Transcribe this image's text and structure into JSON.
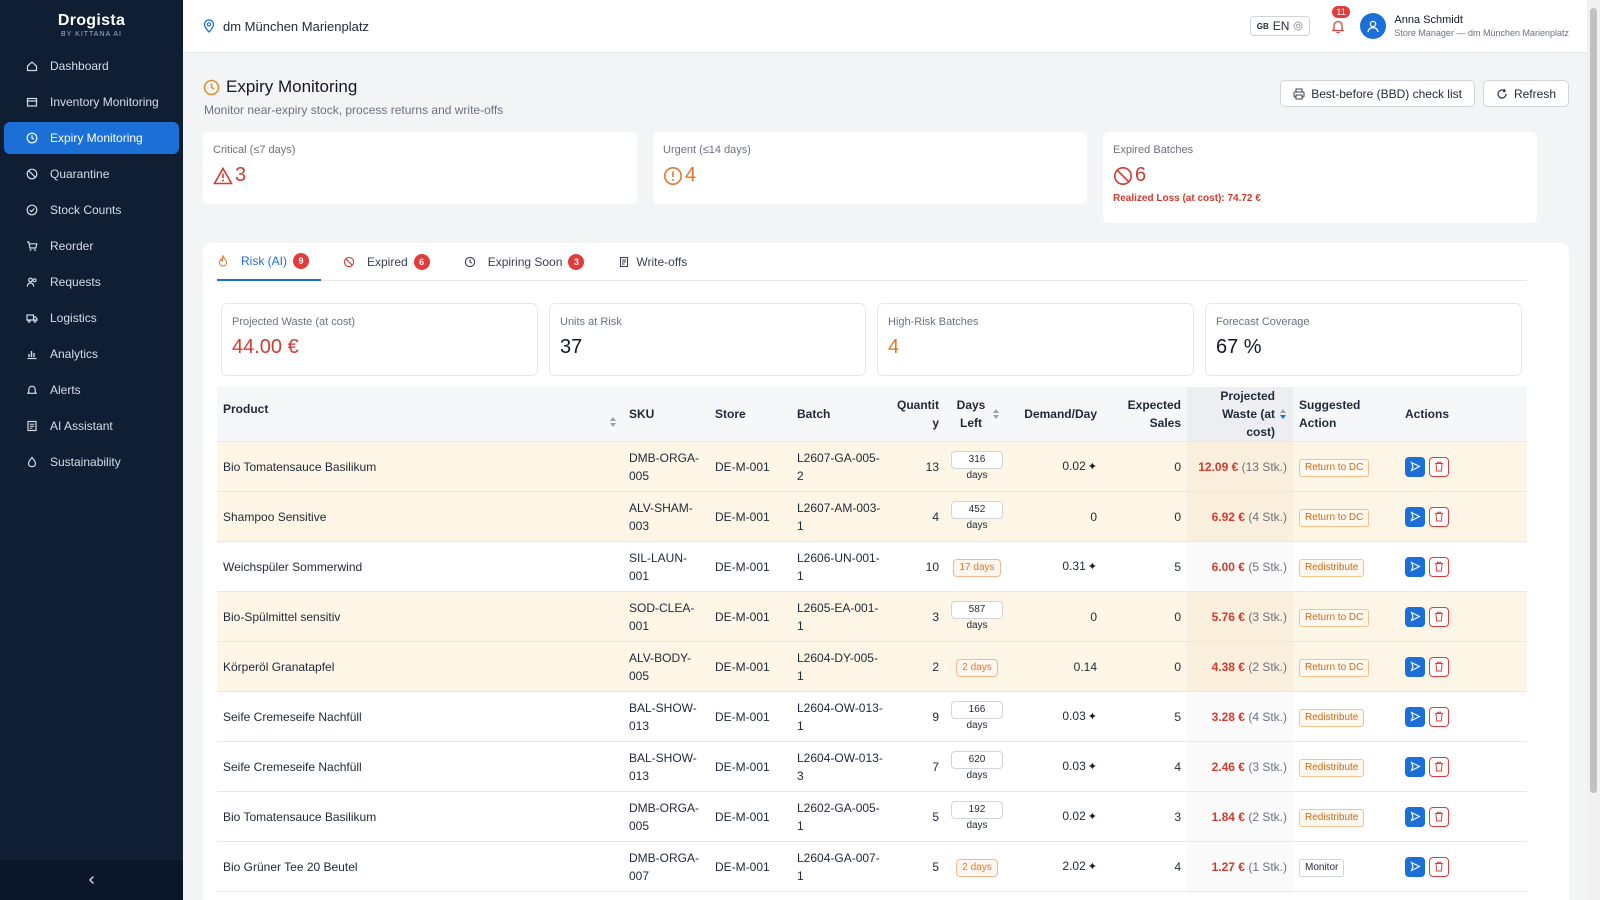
{
  "brand": {
    "name": "Drogista",
    "sub": "BY KITTANA AI"
  },
  "sidebar": {
    "items": [
      {
        "label": "Dashboard",
        "icon": "home-icon"
      },
      {
        "label": "Inventory Monitoring",
        "icon": "box-icon"
      },
      {
        "label": "Expiry Monitoring",
        "icon": "clock-icon",
        "active": true
      },
      {
        "label": "Quarantine",
        "icon": "ban-icon"
      },
      {
        "label": "Stock Counts",
        "icon": "check-circle-icon"
      },
      {
        "label": "Reorder",
        "icon": "cart-icon"
      },
      {
        "label": "Requests",
        "icon": "users-icon"
      },
      {
        "label": "Logistics",
        "icon": "truck-icon"
      },
      {
        "label": "Analytics",
        "icon": "chart-icon"
      },
      {
        "label": "Alerts",
        "icon": "bell-icon"
      },
      {
        "label": "AI Assistant",
        "icon": "document-icon"
      },
      {
        "label": "Sustainability",
        "icon": "leaf-icon"
      }
    ]
  },
  "topbar": {
    "store": "dm München Marienplatz",
    "lang_flag": "GB",
    "lang": "EN",
    "notifications": "11",
    "user_name": "Anna Schmidt",
    "user_role": "Store Manager — dm München Marienplatz"
  },
  "page": {
    "title": "Expiry Monitoring",
    "subtitle": "Monitor near-expiry stock, process returns and write-offs",
    "btn_checklist": "Best-before (BBD) check list",
    "btn_refresh": "Refresh"
  },
  "kpis": {
    "critical_label": "Critical (≤7 days)",
    "critical_value": "3",
    "urgent_label": "Urgent (≤14 days)",
    "urgent_value": "4",
    "expired_label": "Expired Batches",
    "expired_value": "6",
    "loss_note": "Realized Loss (at cost): 74.72 €"
  },
  "tabs": [
    {
      "label": "Risk (AI)",
      "badge": "9"
    },
    {
      "label": "Expired",
      "badge": "6"
    },
    {
      "label": "Expiring Soon",
      "badge": "3"
    },
    {
      "label": "Write-offs",
      "badge": ""
    }
  ],
  "stats": {
    "waste_label": "Projected Waste (at cost)",
    "waste_value": "44.00 €",
    "units_label": "Units at Risk",
    "units_value": "37",
    "batches_label": "High-Risk Batches",
    "batches_value": "4",
    "coverage_label": "Forecast Coverage",
    "coverage_value": "67 %"
  },
  "table": {
    "headers": {
      "product": "Product",
      "sku": "SKU",
      "store": "Store",
      "batch": "Batch",
      "quantity": "Quantity",
      "days_left": "Days Left",
      "demand": "Demand/Day",
      "expected": "Expected Sales",
      "projected": "Projected Waste (at cost)",
      "suggested": "Suggested Action",
      "actions": "Actions"
    },
    "rows": [
      {
        "product": "Bio Tomatensauce Basilikum",
        "sku": "DMB-ORGA-005",
        "store": "DE-M-001",
        "batch": "L2607-GA-005-2",
        "qty": "13",
        "days": "316 days",
        "days_alert": false,
        "demand": "0.02",
        "ai": true,
        "expected": "0",
        "waste": "12.09 €",
        "waste_q": "(13 Stk.)",
        "action": "Return to DC",
        "warn": true
      },
      {
        "product": "Shampoo Sensitive",
        "sku": "ALV-SHAM-003",
        "store": "DE-M-001",
        "batch": "L2607-AM-003-1",
        "qty": "4",
        "days": "452 days",
        "days_alert": false,
        "demand": "0",
        "ai": false,
        "expected": "0",
        "waste": "6.92 €",
        "waste_q": "(4 Stk.)",
        "action": "Return to DC",
        "warn": true
      },
      {
        "product": "Weichspüler Sommerwind",
        "sku": "SIL-LAUN-001",
        "store": "DE-M-001",
        "batch": "L2606-UN-001-1",
        "qty": "10",
        "days": "17 days",
        "days_alert": true,
        "demand": "0.31",
        "ai": true,
        "expected": "5",
        "waste": "6.00 €",
        "waste_q": "(5 Stk.)",
        "action": "Redistribute",
        "warn": false
      },
      {
        "product": "Bio-Spülmittel sensitiv",
        "sku": "SOD-CLEA-001",
        "store": "DE-M-001",
        "batch": "L2605-EA-001-1",
        "qty": "3",
        "days": "587 days",
        "days_alert": false,
        "demand": "0",
        "ai": false,
        "expected": "0",
        "waste": "5.76 €",
        "waste_q": "(3 Stk.)",
        "action": "Return to DC",
        "warn": true
      },
      {
        "product": "Körperöl Granatapfel",
        "sku": "ALV-BODY-005",
        "store": "DE-M-001",
        "batch": "L2604-DY-005-1",
        "qty": "2",
        "days": "2 days",
        "days_alert": true,
        "demand": "0.14",
        "ai": false,
        "expected": "0",
        "waste": "4.38 €",
        "waste_q": "(2 Stk.)",
        "action": "Return to DC",
        "warn": true
      },
      {
        "product": "Seife Cremeseife Nachfüll",
        "sku": "BAL-SHOW-013",
        "store": "DE-M-001",
        "batch": "L2604-OW-013-1",
        "qty": "9",
        "days": "166 days",
        "days_alert": false,
        "demand": "0.03",
        "ai": true,
        "expected": "5",
        "waste": "3.28 €",
        "waste_q": "(4 Stk.)",
        "action": "Redistribute",
        "warn": false
      },
      {
        "product": "Seife Cremeseife Nachfüll",
        "sku": "BAL-SHOW-013",
        "store": "DE-M-001",
        "batch": "L2604-OW-013-3",
        "qty": "7",
        "days": "620 days",
        "days_alert": false,
        "demand": "0.03",
        "ai": true,
        "expected": "4",
        "waste": "2.46 €",
        "waste_q": "(3 Stk.)",
        "action": "Redistribute",
        "warn": false
      },
      {
        "product": "Bio Tomatensauce Basilikum",
        "sku": "DMB-ORGA-005",
        "store": "DE-M-001",
        "batch": "L2602-GA-005-1",
        "qty": "5",
        "days": "192 days",
        "days_alert": false,
        "demand": "0.02",
        "ai": true,
        "expected": "3",
        "waste": "1.84 €",
        "waste_q": "(2 Stk.)",
        "action": "Redistribute",
        "warn": false
      },
      {
        "product": "Bio Grüner Tee 20 Beutel",
        "sku": "DMB-ORGA-007",
        "store": "DE-M-001",
        "batch": "L2604-GA-007-1",
        "qty": "5",
        "days": "2 days",
        "days_alert": true,
        "demand": "2.02",
        "ai": true,
        "expected": "4",
        "waste": "1.27 €",
        "waste_q": "(1 Stk.)",
        "action": "Monitor",
        "warn": false
      }
    ]
  },
  "colors": {
    "accent": "#1b6fd6",
    "danger": "#d23b2f",
    "warning": "#e0772a",
    "sidebar": "#0f1e33"
  }
}
